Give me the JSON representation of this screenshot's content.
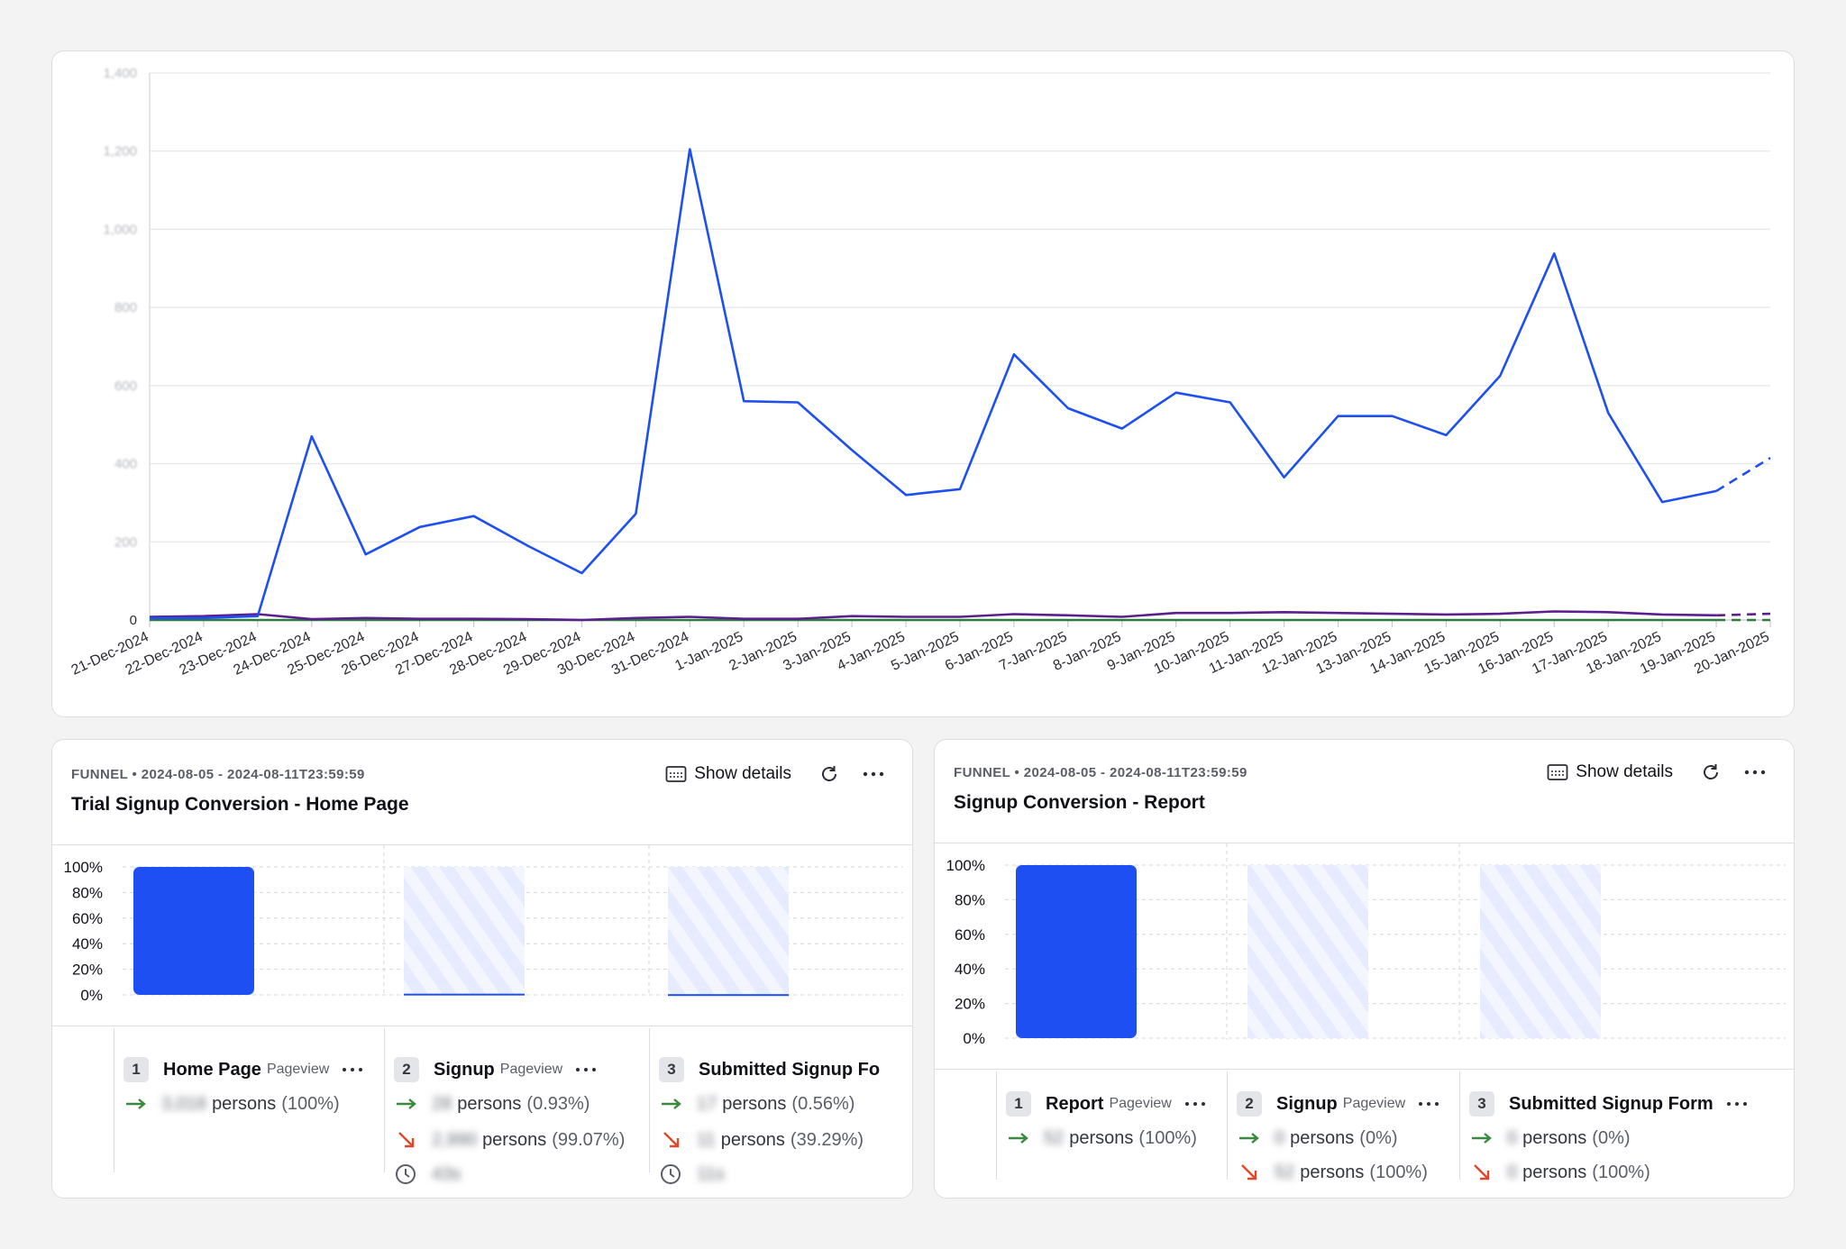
{
  "colors": {
    "series_blue": "#1d4ff2",
    "series_purple": "#5b1f8e",
    "series_green": "#2d7a3d",
    "bar_blue": "#1d4ff2",
    "stripe_light": "#e6ebff",
    "arrow_green": "#3a8a3e",
    "arrow_red": "#e0472a"
  },
  "chart_data": {
    "type": "line",
    "ylim": [
      0,
      1400
    ],
    "yticks": [
      "0",
      "200",
      "400",
      "600",
      "800",
      "1,000",
      "1,200",
      "1,400"
    ],
    "grid": true,
    "categories": [
      "21-Dec-2024",
      "22-Dec-2024",
      "23-Dec-2024",
      "24-Dec-2024",
      "25-Dec-2024",
      "26-Dec-2024",
      "27-Dec-2024",
      "28-Dec-2024",
      "29-Dec-2024",
      "30-Dec-2024",
      "31-Dec-2024",
      "1-Jan-2025",
      "2-Jan-2025",
      "3-Jan-2025",
      "4-Jan-2025",
      "5-Jan-2025",
      "6-Jan-2025",
      "7-Jan-2025",
      "8-Jan-2025",
      "9-Jan-2025",
      "10-Jan-2025",
      "11-Jan-2025",
      "12-Jan-2025",
      "13-Jan-2025",
      "14-Jan-2025",
      "15-Jan-2025",
      "16-Jan-2025",
      "17-Jan-2025",
      "18-Jan-2025",
      "19-Jan-2025",
      "20-Jan-2025"
    ],
    "series": [
      {
        "values": [
          5,
          5,
          10,
          470,
          168,
          238,
          266,
          190,
          120,
          272,
          1205,
          560,
          557,
          435,
          320,
          335,
          680,
          542,
          490,
          582,
          557,
          365,
          522,
          522,
          473,
          625,
          938,
          530,
          302,
          330,
          415
        ],
        "color": "#1d4ff2",
        "dashed_last": true
      },
      {
        "values": [
          8,
          10,
          15,
          2,
          5,
          3,
          3,
          2,
          0,
          5,
          8,
          3,
          3,
          10,
          8,
          8,
          15,
          12,
          8,
          18,
          18,
          20,
          18,
          16,
          14,
          16,
          22,
          20,
          14,
          12,
          16
        ],
        "color": "#5b1f8e",
        "dashed_last": true
      },
      {
        "values": [
          0,
          0,
          0,
          0,
          0,
          0,
          0,
          0,
          0,
          0,
          0,
          0,
          0,
          0,
          0,
          0,
          0,
          0,
          0,
          0,
          0,
          0,
          0,
          0,
          0,
          0,
          0,
          0,
          0,
          0,
          0
        ],
        "color": "#2d7a3d",
        "dashed_last": true
      }
    ]
  },
  "funnels": [
    {
      "meta": "FUNNEL • 2024-08-05 - 2024-08-11T23:59:59",
      "title": "Trial Signup Conversion - Home Page",
      "show_details": "Show details",
      "yticks": [
        "0%",
        "20%",
        "40%",
        "60%",
        "80%",
        "100%"
      ],
      "bar_values": [
        100,
        0.93,
        0.56
      ],
      "steps": [
        {
          "num": "1",
          "name": "Home Page",
          "type": "Pageview",
          "converted": {
            "count": "3,018",
            "label": "persons",
            "pct": "(100%)"
          }
        },
        {
          "num": "2",
          "name": "Signup",
          "type": "Pageview",
          "converted": {
            "count": "28",
            "label": "persons",
            "pct": "(0.93%)"
          },
          "dropped": {
            "count": "2,990",
            "label": "persons",
            "pct": "(99.07%)"
          },
          "time": "43s"
        },
        {
          "num": "3",
          "name": "Submitted Signup Fo",
          "converted": {
            "count": "17",
            "label": "persons",
            "pct": "(0.56%)"
          },
          "dropped": {
            "count": "11",
            "label": "persons",
            "pct": "(39.29%)"
          },
          "time": "11s"
        }
      ]
    },
    {
      "meta": "FUNNEL • 2024-08-05 - 2024-08-11T23:59:59",
      "title": "Signup Conversion - Report",
      "show_details": "Show details",
      "yticks": [
        "0%",
        "20%",
        "40%",
        "60%",
        "80%",
        "100%"
      ],
      "bar_values": [
        100,
        0,
        0
      ],
      "steps": [
        {
          "num": "1",
          "name": "Report",
          "type": "Pageview",
          "converted": {
            "count": "52",
            "label": "persons",
            "pct": "(100%)"
          }
        },
        {
          "num": "2",
          "name": "Signup",
          "type": "Pageview",
          "converted": {
            "count": "0",
            "label": "persons",
            "pct": "(0%)"
          },
          "dropped": {
            "count": "52",
            "label": "persons",
            "pct": "(100%)"
          }
        },
        {
          "num": "3",
          "name": "Submitted Signup Form",
          "converted": {
            "count": "0",
            "label": "persons",
            "pct": "(0%)"
          },
          "dropped": {
            "count": "0",
            "label": "persons",
            "pct": "(100%)"
          }
        }
      ]
    }
  ]
}
